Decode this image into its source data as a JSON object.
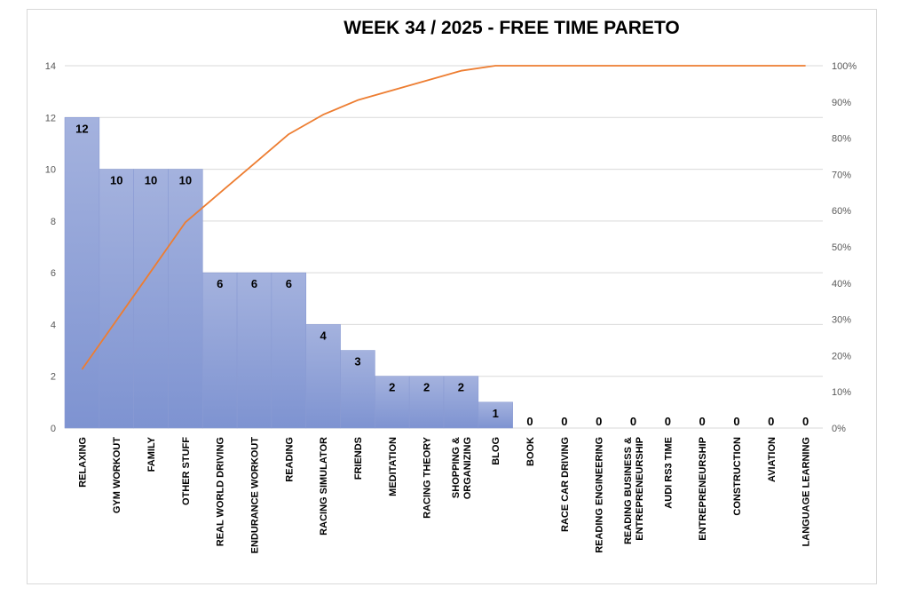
{
  "chart_data": {
    "type": "bar",
    "title": "WEEK 34 / 2025  - FREE TIME PARETO",
    "categories": [
      [
        "RELAXING"
      ],
      [
        "GYM WORKOUT"
      ],
      [
        "FAMILY"
      ],
      [
        "OTHER STUFF"
      ],
      [
        "REAL WORLD DRIVING"
      ],
      [
        "ENDURANCE WORKOUT"
      ],
      [
        "READING"
      ],
      [
        "RACING SIMULATOR"
      ],
      [
        "FRIENDS"
      ],
      [
        "MEDITATION"
      ],
      [
        "RACING THEORY"
      ],
      [
        "SHOPPING &",
        "ORGANIZING"
      ],
      [
        "BLOG"
      ],
      [
        "BOOK"
      ],
      [
        "RACE CAR DRIVING"
      ],
      [
        "READING ENGINEERING"
      ],
      [
        "READING BUSINESS &",
        "ENTREPRENEURSHIP"
      ],
      [
        "AUDI RS3 TIME"
      ],
      [
        "ENTREPRENEURSHIP"
      ],
      [
        "CONSTRUCTION"
      ],
      [
        "AVIATION"
      ],
      [
        "LANGUAGE LEARNING"
      ]
    ],
    "values": [
      12,
      10,
      10,
      10,
      6,
      6,
      6,
      4,
      3,
      2,
      2,
      2,
      1,
      0,
      0,
      0,
      0,
      0,
      0,
      0,
      0,
      0
    ],
    "cumulative_percent": [
      16.2,
      29.7,
      43.2,
      56.8,
      64.9,
      73.0,
      81.1,
      86.5,
      90.5,
      93.2,
      95.9,
      98.6,
      100,
      100,
      100,
      100,
      100,
      100,
      100,
      100,
      100,
      100
    ],
    "ylim": [
      0,
      14
    ],
    "yticks": [
      "0",
      "2",
      "4",
      "6",
      "8",
      "10",
      "12",
      "14"
    ],
    "y2lim": [
      0,
      100
    ],
    "y2ticks": [
      "0%",
      "10%",
      "20%",
      "30%",
      "40%",
      "50%",
      "60%",
      "70%",
      "80%",
      "90%",
      "100%"
    ],
    "grid": true,
    "colors": {
      "bar_top": "#a4b2de",
      "bar_bottom": "#7e93d1",
      "bar_edge": "#8a9bd3",
      "line": "#ed7d31",
      "grid": "#d9d9d9"
    }
  }
}
